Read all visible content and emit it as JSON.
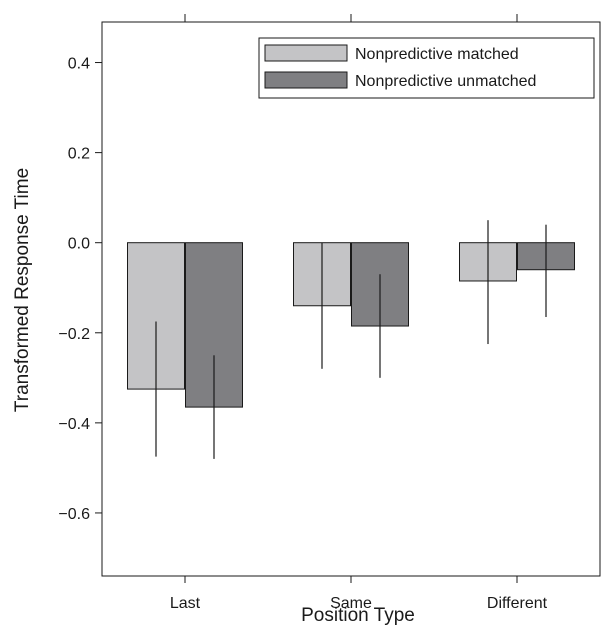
{
  "chart_data": {
    "type": "bar",
    "xlabel": "Position Type",
    "ylabel": "Transformed Response Time",
    "categories": [
      "Last",
      "Same",
      "Different"
    ],
    "ylim": [
      -0.74,
      0.49
    ],
    "yticks": [
      0.4,
      0.2,
      0.0,
      -0.2,
      -0.4,
      -0.6
    ],
    "ytick_labels": [
      "0.4",
      "0.2",
      "0.0",
      "−0.2",
      "−0.4",
      "−0.6"
    ],
    "series": [
      {
        "name": "Nonpredictive matched",
        "color": "#c4c4c6",
        "values": [
          -0.325,
          -0.14,
          -0.085
        ],
        "error_low": [
          -0.475,
          -0.28,
          -0.225
        ],
        "error_high": [
          -0.175,
          0.0,
          0.05
        ]
      },
      {
        "name": "Nonpredictive unmatched",
        "color": "#7f7f82",
        "values": [
          -0.365,
          -0.185,
          -0.06
        ],
        "error_low": [
          -0.48,
          -0.3,
          -0.165
        ],
        "error_high": [
          -0.25,
          -0.07,
          0.04
        ]
      }
    ],
    "legend_position": "top-right",
    "grid": false
  }
}
